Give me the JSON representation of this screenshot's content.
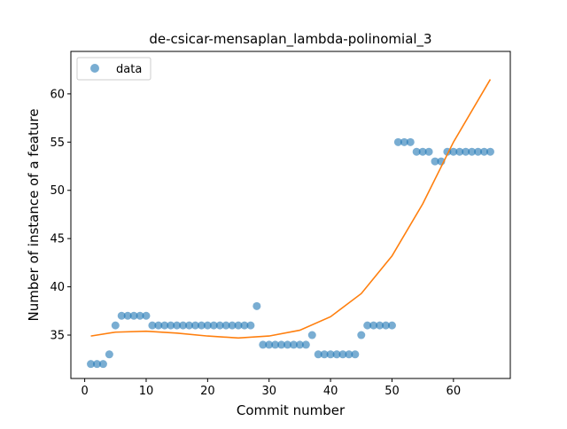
{
  "chart_data": {
    "type": "scatter",
    "title": "de-csicar-mensaplan_lambda-polinomial_3",
    "xlabel": "Commit number",
    "ylabel": "Number of instance of a feature",
    "xlim": [
      -2.25,
      69.25
    ],
    "ylim": [
      30.5,
      64.4
    ],
    "xticks": [
      0,
      10,
      20,
      30,
      40,
      50,
      60
    ],
    "yticks": [
      35,
      40,
      45,
      50,
      55,
      60
    ],
    "grid": false,
    "legend_position": "top-left",
    "series": [
      {
        "name": "data",
        "kind": "scatter",
        "color": "#1f77b4",
        "x": [
          1,
          2,
          3,
          4,
          5,
          6,
          7,
          8,
          9,
          10,
          11,
          12,
          13,
          14,
          15,
          16,
          17,
          18,
          19,
          20,
          21,
          22,
          23,
          24,
          25,
          26,
          27,
          28,
          29,
          30,
          31,
          32,
          33,
          34,
          35,
          36,
          37,
          38,
          39,
          40,
          41,
          42,
          43,
          44,
          45,
          46,
          47,
          48,
          49,
          50,
          51,
          52,
          53,
          54,
          55,
          56,
          57,
          58,
          59,
          60,
          61,
          62,
          63,
          64,
          65,
          66
        ],
        "y": [
          32,
          32,
          32,
          33,
          36,
          37,
          37,
          37,
          37,
          37,
          36,
          36,
          36,
          36,
          36,
          36,
          36,
          36,
          36,
          36,
          36,
          36,
          36,
          36,
          36,
          36,
          36,
          38,
          34,
          34,
          34,
          34,
          34,
          34,
          34,
          34,
          35,
          33,
          33,
          33,
          33,
          33,
          33,
          33,
          35,
          36,
          36,
          36,
          36,
          36,
          55,
          55,
          55,
          54,
          54,
          54,
          53,
          53,
          54,
          54,
          54,
          54,
          54,
          54,
          54,
          54
        ]
      },
      {
        "name": "",
        "kind": "line",
        "color": "#ff7f0e",
        "x": [
          1,
          5,
          10,
          15,
          20,
          25,
          30,
          35,
          40,
          45,
          50,
          55,
          60,
          66
        ],
        "y": [
          34.9,
          35.3,
          35.4,
          35.2,
          34.9,
          34.7,
          34.9,
          35.5,
          36.9,
          39.3,
          43.2,
          48.6,
          55.0,
          61.5
        ]
      }
    ]
  }
}
